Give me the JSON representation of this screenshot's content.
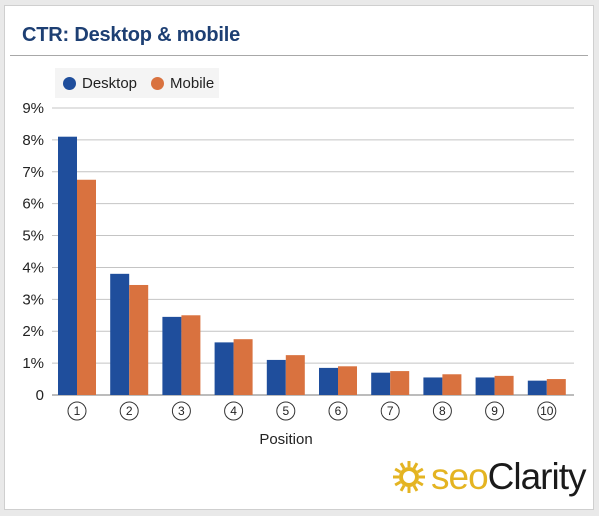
{
  "chart_data": {
    "type": "bar",
    "title": "CTR: Desktop & mobile",
    "xlabel": "Position",
    "ylabel": "",
    "categories": [
      "1",
      "2",
      "3",
      "4",
      "5",
      "6",
      "7",
      "8",
      "9",
      "10"
    ],
    "category_glyphs": [
      "①",
      "②",
      "③",
      "④",
      "⑤",
      "⑥",
      "⑦",
      "⑧",
      "⑨",
      "⑩"
    ],
    "series": [
      {
        "name": "Desktop",
        "color": "#1f4e9c",
        "values": [
          8.1,
          3.8,
          2.45,
          1.65,
          1.1,
          0.85,
          0.7,
          0.55,
          0.55,
          0.45
        ]
      },
      {
        "name": "Mobile",
        "color": "#d9723f",
        "values": [
          6.75,
          3.45,
          2.5,
          1.75,
          1.25,
          0.9,
          0.75,
          0.65,
          0.6,
          0.5
        ]
      }
    ],
    "ylim": [
      0,
      9
    ],
    "yticks": [
      "0",
      "1%",
      "2%",
      "3%",
      "4%",
      "5%",
      "6%",
      "7%",
      "8%",
      "9%"
    ],
    "grid": true,
    "legend_position": "top-left"
  },
  "brand": {
    "name_part1": "seo",
    "name_part2": "Clarity",
    "accent": "#e4b422",
    "icon": "sun-gear-icon"
  }
}
